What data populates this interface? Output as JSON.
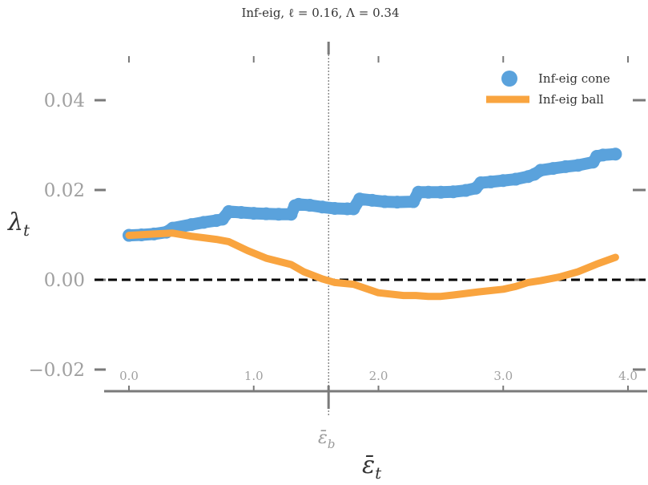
{
  "chart_data": {
    "type": "line",
    "title": "Inf-eig, ℓ = 0.16, Λ = 0.34",
    "xlabel": "ε̄",
    "xlabel_sub": "t",
    "ylabel": "λ",
    "ylabel_sub": "t",
    "xlim": [
      -0.2,
      4.1
    ],
    "ylim": [
      -0.025,
      0.05
    ],
    "xticks": [
      0.0,
      1.0,
      2.0,
      3.0,
      4.0
    ],
    "xtick_labels": [
      "0.0",
      "1.0",
      "2.0",
      "3.0",
      "4.0"
    ],
    "yticks": [
      -0.02,
      0.0,
      0.02,
      0.04
    ],
    "ytick_labels": [
      "−0.02",
      "0.00",
      "0.02",
      "0.04"
    ],
    "grid": false,
    "legend_position": "top-right",
    "series": [
      {
        "name": "Inf-eig cone",
        "color": "#5aa2dc",
        "style": "markers",
        "x": [
          0.0,
          0.1,
          0.2,
          0.3,
          0.35,
          0.5,
          0.6,
          0.7,
          0.75,
          0.8,
          0.9,
          1.0,
          1.1,
          1.2,
          1.3,
          1.33,
          1.36,
          1.45,
          1.55,
          1.65,
          1.75,
          1.8,
          1.85,
          1.95,
          2.05,
          2.15,
          2.28,
          2.32,
          2.4,
          2.5,
          2.6,
          2.7,
          2.78,
          2.82,
          2.9,
          3.0,
          3.1,
          3.2,
          3.25,
          3.3,
          3.4,
          3.5,
          3.6,
          3.72,
          3.75,
          3.8,
          3.9
        ],
        "y": [
          0.0099,
          0.01,
          0.0102,
          0.0106,
          0.0115,
          0.0123,
          0.0128,
          0.0132,
          0.0135,
          0.0152,
          0.015,
          0.0148,
          0.0147,
          0.0146,
          0.0146,
          0.0165,
          0.0168,
          0.0166,
          0.0162,
          0.0159,
          0.0158,
          0.0158,
          0.018,
          0.0177,
          0.0174,
          0.0173,
          0.0174,
          0.0195,
          0.0195,
          0.0195,
          0.0196,
          0.0199,
          0.0204,
          0.0216,
          0.0218,
          0.0221,
          0.0224,
          0.023,
          0.0235,
          0.0244,
          0.0248,
          0.0252,
          0.0255,
          0.0262,
          0.0275,
          0.0278,
          0.028
        ]
      },
      {
        "name": "Inf-eig ball",
        "color": "#f9a43f",
        "style": "line",
        "x": [
          0.0,
          0.2,
          0.35,
          0.5,
          0.7,
          0.8,
          0.95,
          1.1,
          1.3,
          1.4,
          1.55,
          1.65,
          1.8,
          2.0,
          2.2,
          2.3,
          2.4,
          2.5,
          2.6,
          2.8,
          3.0,
          3.1,
          3.2,
          3.3,
          3.45,
          3.6,
          3.75,
          3.9
        ],
        "y": [
          0.0099,
          0.0102,
          0.0104,
          0.0097,
          0.009,
          0.0085,
          0.0065,
          0.0048,
          0.0034,
          0.0018,
          0.0002,
          -0.0006,
          -0.001,
          -0.0029,
          -0.0035,
          -0.0035,
          -0.0037,
          -0.0037,
          -0.0034,
          -0.0027,
          -0.0021,
          -0.0015,
          -0.0006,
          -0.0002,
          0.0006,
          0.0018,
          0.0035,
          0.005
        ]
      }
    ],
    "reference_lines": [
      {
        "kind": "horizontal",
        "y": 0.0,
        "style": "dashed",
        "color": "#000000"
      },
      {
        "kind": "vertical",
        "x": 1.6,
        "style": "dotted",
        "color": "#555555",
        "label": "ε̄",
        "label_sub": "b"
      }
    ]
  }
}
